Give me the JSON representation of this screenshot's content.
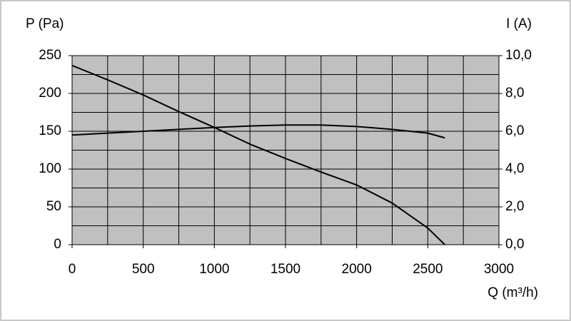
{
  "chart_data": {
    "type": "line",
    "y_label": "P (Pa)",
    "y2_label": "I (A)",
    "x_label": "Q (m³/h)",
    "x": [
      0,
      250,
      500,
      750,
      1000,
      1250,
      1500,
      1750,
      2000,
      2250,
      2500,
      2620
    ],
    "series": [
      {
        "color": "#000000",
        "values": [
          237,
          218,
          198,
          176,
          155,
          133,
          114,
          96,
          79,
          55,
          22,
          0
        ]
      },
      {
        "color": "#000000",
        "axis": "y2",
        "values": [
          5.8,
          5.9,
          6.0,
          6.1,
          6.2,
          6.28,
          6.33,
          6.33,
          6.25,
          6.1,
          5.9,
          5.65
        ]
      }
    ],
    "xlim": [
      0,
      3000
    ],
    "xticks": [
      0,
      500,
      1000,
      1500,
      2000,
      2500,
      3000
    ],
    "xminor": [
      250,
      750,
      1250,
      1750,
      2250,
      2750
    ],
    "ylim": [
      0,
      250
    ],
    "yticks": [
      0,
      50,
      100,
      150,
      200,
      250
    ],
    "yminor": [
      25,
      75,
      125,
      175,
      225
    ],
    "y2lim": [
      0,
      10
    ],
    "y2ticks": [
      {
        "value": 0,
        "label": "0,0"
      },
      {
        "value": 2,
        "label": "2,0"
      },
      {
        "value": 4,
        "label": "4,0"
      },
      {
        "value": 6,
        "label": "6,0"
      },
      {
        "value": 8,
        "label": "8,0"
      },
      {
        "value": 10,
        "label": "10,0"
      }
    ],
    "grid": true,
    "plot_background": "#c0c0c0"
  }
}
